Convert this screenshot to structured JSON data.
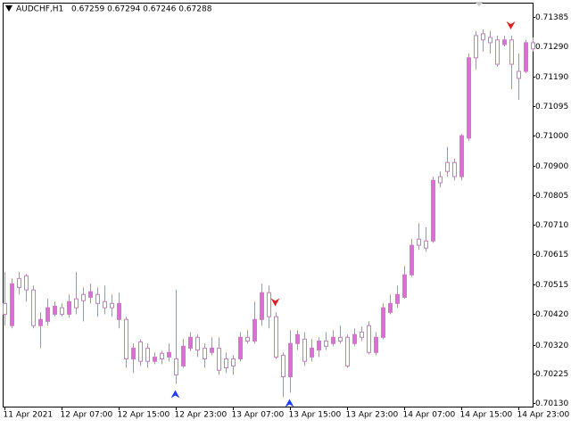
{
  "chart_data": {
    "type": "candlestick",
    "title": "AUDCHF,H1",
    "quote": "0.67259 0.67294 0.67246 0.67288",
    "categories": [
      "11 Apr 2021",
      null,
      null,
      null,
      null,
      null,
      null,
      null,
      "12 Apr 07:00",
      null,
      null,
      null,
      null,
      null,
      null,
      null,
      "12 Apr 15:00",
      null,
      null,
      null,
      null,
      null,
      null,
      null,
      "12 Apr 23:00",
      null,
      null,
      null,
      null,
      null,
      null,
      null,
      "13 Apr 07:00",
      null,
      null,
      null,
      null,
      null,
      null,
      null,
      "13 Apr 15:00",
      null,
      null,
      null,
      null,
      null,
      null,
      null,
      "13 Apr 23:00",
      null,
      null,
      null,
      null,
      null,
      null,
      null,
      "14 Apr 07:00",
      null,
      null,
      null,
      null,
      null,
      null,
      null,
      "14 Apr 15:00",
      null,
      null,
      null,
      null,
      null,
      null,
      null,
      "14 Apr 23:00",
      null,
      null
    ],
    "open": [
      0.70454,
      0.70382,
      0.70535,
      0.70544,
      0.70498,
      0.70382,
      0.70396,
      0.70419,
      0.7044,
      0.70419,
      0.70469,
      0.70483,
      0.70474,
      0.70483,
      0.7046,
      0.70454,
      0.70402,
      0.70402,
      0.70274,
      0.70329,
      0.70309,
      0.70266,
      0.70292,
      0.7028,
      0.70274,
      0.70251,
      0.70309,
      0.70344,
      0.70309,
      0.70295,
      0.70309,
      0.70274,
      0.70274,
      0.70274,
      0.70344,
      0.70332,
      0.70402,
      0.70489,
      0.70411,
      0.70286,
      0.70216,
      0.70324,
      0.70338,
      0.7028,
      0.70303,
      0.70332,
      0.70324,
      0.70344,
      0.70344,
      0.70324,
      0.70361,
      0.70382,
      0.70295,
      0.70344,
      0.70425,
      0.70454,
      0.70474,
      0.70547,
      0.70663,
      0.70657,
      0.70657,
      0.70866,
      0.70912,
      0.70912,
      0.70866,
      0.70991,
      0.71324,
      0.7133,
      0.71318,
      0.7131,
      0.71295,
      0.7131,
      0.71208,
      0.71208,
      0.71301
    ],
    "high": [
      0.70556,
      0.70535,
      0.70556,
      0.7055,
      0.70512,
      0.70425,
      0.70469,
      0.7046,
      0.70454,
      0.70483,
      0.70556,
      0.70506,
      0.70518,
      0.70506,
      0.70512,
      0.70483,
      0.70489,
      0.70411,
      0.70324,
      0.70338,
      0.70324,
      0.70295,
      0.703,
      0.70324,
      0.70498,
      0.70338,
      0.70361,
      0.70353,
      0.70324,
      0.70344,
      0.70344,
      0.70295,
      0.70286,
      0.70361,
      0.70367,
      0.7046,
      0.70518,
      0.70512,
      0.70425,
      0.70295,
      0.70367,
      0.70367,
      0.70361,
      0.70338,
      0.70344,
      0.70361,
      0.70367,
      0.70382,
      0.70353,
      0.70373,
      0.70379,
      0.70396,
      0.70361,
      0.70454,
      0.70483,
      0.70512,
      0.70576,
      0.70663,
      0.70715,
      0.70701,
      0.70866,
      0.70883,
      0.70962,
      0.70924,
      0.71005,
      0.71266,
      0.71339,
      0.71344,
      0.71339,
      0.71324,
      0.71324,
      0.71324,
      0.71266,
      0.7131,
      0.71318
    ],
    "low": [
      0.70382,
      0.70373,
      0.70483,
      0.7046,
      0.70373,
      0.70309,
      0.70382,
      0.70411,
      0.70411,
      0.70408,
      0.70419,
      0.70396,
      0.70454,
      0.70411,
      0.70419,
      0.70411,
      0.70373,
      0.70245,
      0.70228,
      0.70251,
      0.70245,
      0.70257,
      0.70257,
      0.70266,
      0.70193,
      0.70245,
      0.703,
      0.7028,
      0.70245,
      0.70286,
      0.70222,
      0.70228,
      0.70222,
      0.70266,
      0.70324,
      0.70324,
      0.70382,
      0.70373,
      0.70274,
      0.7015,
      0.70164,
      0.70303,
      0.70251,
      0.70266,
      0.7028,
      0.70303,
      0.70315,
      0.70324,
      0.70245,
      0.70315,
      0.70332,
      0.70289,
      0.70286,
      0.70338,
      0.70419,
      0.7044,
      0.70469,
      0.70541,
      0.70628,
      0.70622,
      0.70651,
      0.70831,
      0.70866,
      0.70854,
      0.70854,
      0.70982,
      0.71214,
      0.71272,
      0.71266,
      0.71223,
      0.71289,
      0.7115,
      0.71115,
      0.71202,
      0.71272
    ],
    "close": [
      0.70419,
      0.70518,
      0.70506,
      0.70498,
      0.70382,
      0.70402,
      0.7044,
      0.70445,
      0.70419,
      0.7046,
      0.7044,
      0.70463,
      0.70492,
      0.70454,
      0.7044,
      0.7044,
      0.70454,
      0.70274,
      0.70309,
      0.70266,
      0.70266,
      0.7028,
      0.70274,
      0.70295,
      0.70222,
      0.70315,
      0.70344,
      0.70303,
      0.70274,
      0.70309,
      0.70237,
      0.70245,
      0.70251,
      0.70344,
      0.70332,
      0.70402,
      0.70489,
      0.70411,
      0.7028,
      0.70216,
      0.70324,
      0.70353,
      0.70266,
      0.70309,
      0.70332,
      0.70315,
      0.70344,
      0.70332,
      0.70251,
      0.70353,
      0.70344,
      0.70295,
      0.70344,
      0.7044,
      0.70454,
      0.70483,
      0.70547,
      0.70643,
      0.70643,
      0.70634,
      0.70854,
      0.70846,
      0.70883,
      0.70866,
      0.70999,
      0.71252,
      0.71252,
      0.7131,
      0.71301,
      0.71231,
      0.7131,
      0.71231,
      0.71185,
      0.71301,
      0.71281
    ],
    "up_color": "#da70d6",
    "down_color": "#ffffff",
    "wick_color": "#da70d6",
    "buy_arrows": {
      "indices": [
        24,
        40
      ],
      "color": "#1e3cff"
    },
    "sell_arrows": {
      "indices": [
        38,
        71
      ],
      "color": "#e02020"
    },
    "ylim": [
      0.70119,
      0.71431
    ],
    "yticks": [
      0.71385,
      {
        "value": 0.7129,
        "label": "0.71290"
      },
      {
        "value": 0.7119,
        "label": "0.71190"
      },
      0.71095,
      {
        "value": 0.71,
        "label": "0.71000"
      },
      {
        "value": 0.709,
        "label": "0.70900"
      },
      0.70805,
      {
        "value": 0.7071,
        "label": "0.70710"
      },
      0.70615,
      0.70515,
      {
        "value": 0.7042,
        "label": "0.70420"
      },
      {
        "value": 0.7032,
        "label": "0.70320"
      },
      0.70225,
      {
        "value": 0.7013,
        "label": "0.70130"
      }
    ],
    "grid": false
  }
}
